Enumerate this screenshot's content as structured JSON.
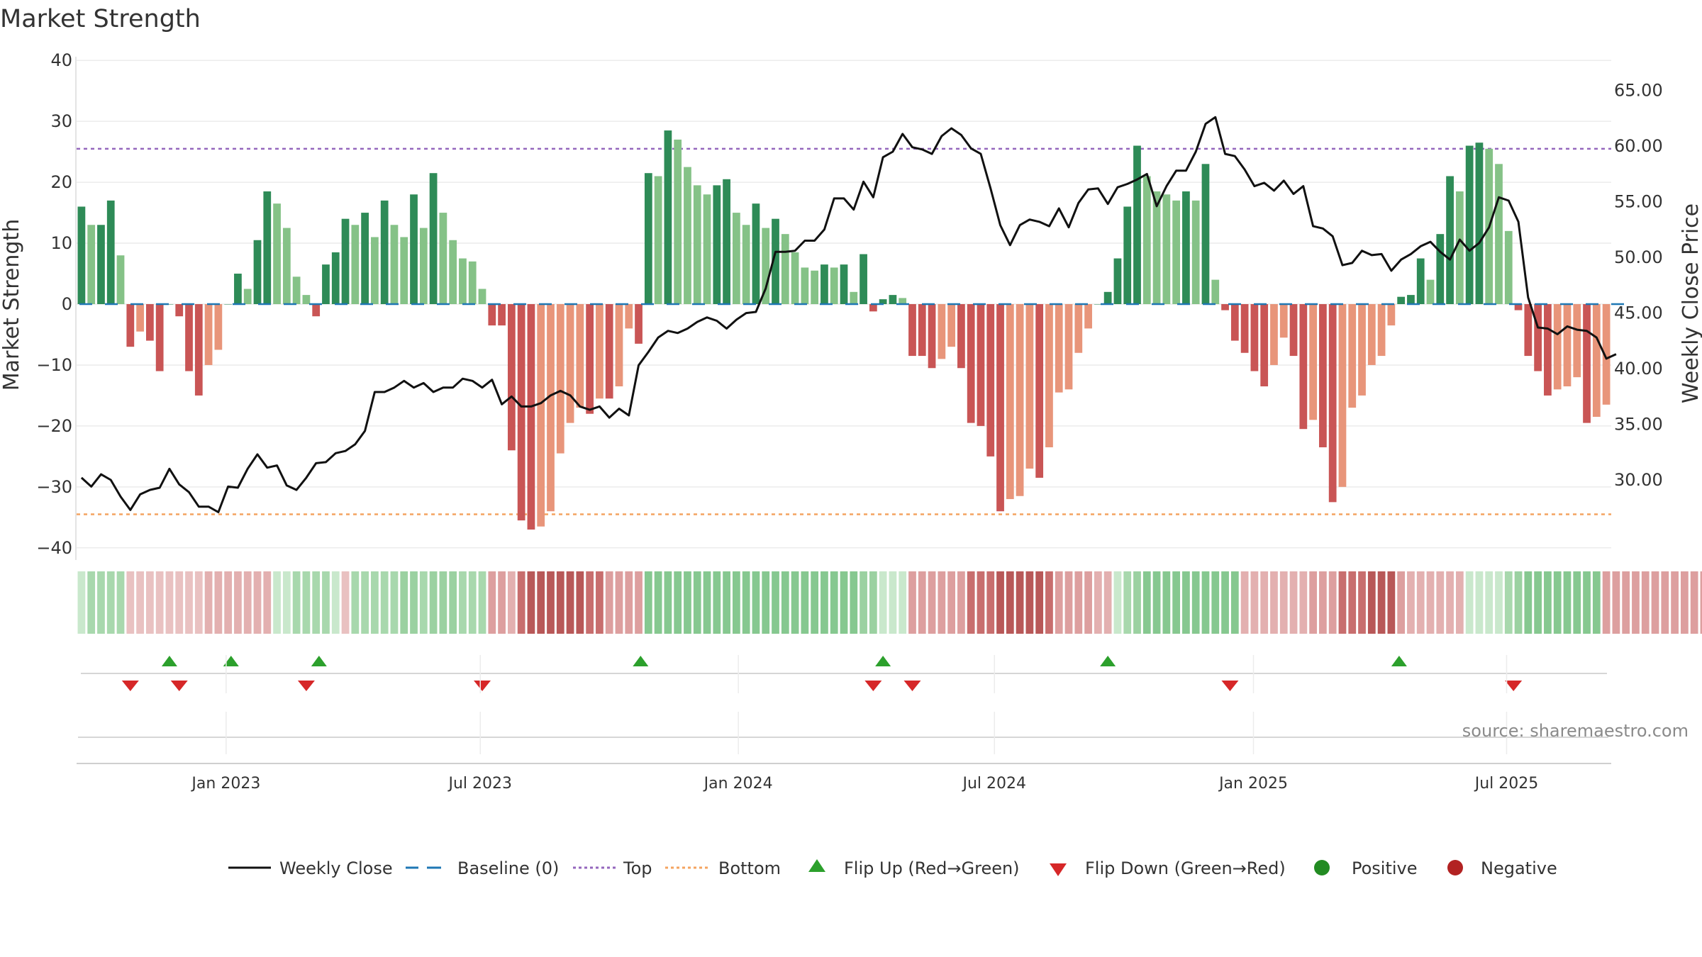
{
  "chart_data": {
    "type": "bar",
    "title": "Market Strength",
    "source": "source: sharemaestro.com",
    "ylabel": "Market Strength",
    "ylabel2": "Weekly Close Price",
    "ylim": [
      -42,
      42
    ],
    "ylim2": [
      22.8,
      68.8
    ],
    "yticks": [
      40,
      30,
      20,
      10,
      0,
      -10,
      -20,
      -30,
      -40
    ],
    "yticks2": [
      "65.00",
      "60.00",
      "55.00",
      "50.00",
      "45.00",
      "40.00",
      "35.00",
      "30.00"
    ],
    "ytick_labels": [
      "40",
      "30",
      "20",
      "10",
      "0",
      "−10",
      "−20",
      "−30",
      "−40"
    ],
    "top": 25.5,
    "bottom": -34.5,
    "xticks": [
      {
        "label": "Jan 2023",
        "week": 14.8
      },
      {
        "label": "Jul 2023",
        "week": 40.8
      },
      {
        "label": "Jan 2024",
        "week": 67.2
      },
      {
        "label": "Jul 2024",
        "week": 93.4
      },
      {
        "label": "Jan 2025",
        "week": 119.9
      },
      {
        "label": "Jul 2025",
        "week": 145.8
      }
    ],
    "strength": [
      16,
      13,
      13,
      17,
      8,
      -7,
      -4.5,
      -6,
      -11,
      0,
      -2,
      -11,
      -15,
      -10,
      -7.5,
      0,
      5,
      2.5,
      10.5,
      18.5,
      16.5,
      12.5,
      4.5,
      1.5,
      -2,
      6.5,
      8.5,
      14,
      13,
      15,
      11,
      17,
      13,
      11,
      18,
      12.5,
      21.5,
      15,
      10.5,
      7.5,
      7,
      2.5,
      -3.5,
      -3.5,
      -24,
      -35.5,
      -37,
      -36.5,
      -34,
      -24.5,
      -19.5,
      -17,
      -18,
      -15.5,
      -15.5,
      -13.5,
      -4,
      -6.5,
      21.5,
      21,
      28.5,
      27,
      22.5,
      19.5,
      18,
      19.5,
      20.5,
      15,
      13,
      16.5,
      12.5,
      14,
      11.5,
      8.5,
      6,
      5.5,
      6.5,
      6,
      6.5,
      2,
      8.2,
      -1.2,
      0.8,
      1.5,
      1,
      -8.5,
      -8.5,
      -10.5,
      -9,
      -7,
      -10.5,
      -19.5,
      -20,
      -25,
      -34,
      -32,
      -31.5,
      -27,
      -28.5,
      -23.5,
      -14.5,
      -14,
      -8,
      -4,
      0,
      2,
      7.5,
      16,
      26,
      21,
      18.5,
      18,
      17,
      18.5,
      17,
      23,
      4,
      -1,
      -6,
      -8,
      -11,
      -13.5,
      -10,
      -5.5,
      -8.5,
      -20.5,
      -19,
      -23.5,
      -32.5,
      -30,
      -17,
      -15,
      -10,
      -8.5,
      -3.5,
      1.2,
      1.5,
      7.5,
      4,
      11.5,
      21,
      18.5,
      26,
      26.5,
      25.5,
      23,
      12,
      -1,
      -8.5,
      -11,
      -15,
      -14,
      -13.5,
      -12,
      -19.5,
      -18.5,
      -16.5
    ],
    "price": [
      30.2,
      29.4,
      30.5,
      30.0,
      28.5,
      27.3,
      28.7,
      29.1,
      29.3,
      31.0,
      29.6,
      28.9,
      27.6,
      27.6,
      27.1,
      29.4,
      29.3,
      31.0,
      32.3,
      31.1,
      31.3,
      29.5,
      29.1,
      30.2,
      31.5,
      31.6,
      32.4,
      32.6,
      33.2,
      34.4,
      37.9,
      37.9,
      38.3,
      38.9,
      38.3,
      38.7,
      37.9,
      38.3,
      38.3,
      39.1,
      38.9,
      38.3,
      39.0,
      36.8,
      37.5,
      36.6,
      36.6,
      36.9,
      37.6,
      38.0,
      37.6,
      36.6,
      36.3,
      36.6,
      35.6,
      36.4,
      35.8,
      40.3,
      41.5,
      42.8,
      43.4,
      43.2,
      43.6,
      44.2,
      44.6,
      44.3,
      43.6,
      44.4,
      45.0,
      45.1,
      47.2,
      50.5,
      50.5,
      50.6,
      51.5,
      51.5,
      52.5,
      55.3,
      55.3,
      54.3,
      56.8,
      55.4,
      59.0,
      59.5,
      61.1,
      59.9,
      59.7,
      59.3,
      60.9,
      61.6,
      61.0,
      59.8,
      59.3,
      56.2,
      52.9,
      51.1,
      52.9,
      53.4,
      53.2,
      52.8,
      54.4,
      52.7,
      54.9,
      56.1,
      56.2,
      54.8,
      56.3,
      56.6,
      57.0,
      57.5,
      54.6,
      56.4,
      57.8,
      57.8,
      59.5,
      62.0,
      62.6,
      59.3,
      59.1,
      57.9,
      56.4,
      56.7,
      56.0,
      56.9,
      55.7,
      56.4,
      52.8,
      52.6,
      51.9,
      49.3,
      49.5,
      50.6,
      50.2,
      50.3,
      48.8,
      49.8,
      50.3,
      51.0,
      51.4,
      50.5,
      49.8,
      51.6,
      50.6,
      51.3,
      52.7,
      55.4,
      55.1,
      53.2,
      46.4,
      43.7,
      43.6,
      43.1,
      43.8,
      43.5,
      43.4,
      42.8,
      40.9,
      41.3
    ],
    "regime_colors": {
      "darkgreen": "#2e8b57",
      "lightgreen": "#85c287",
      "darkred": "#c95555",
      "lightred": "#e8957a"
    },
    "strip_colors": [
      "#86c890",
      "#9bd1a1",
      "#a8d8ad",
      "#c9e8cc",
      "#e9c1c1",
      "#e3b0b0",
      "#dd9f9f",
      "#c86e6e",
      "#b85858"
    ],
    "strip_levels": [
      3,
      2,
      2,
      2,
      2,
      4,
      4,
      4,
      4,
      4,
      4,
      4,
      4,
      5,
      5,
      5,
      5,
      5,
      5,
      5,
      3,
      3,
      2,
      2,
      2,
      2,
      3,
      4,
      2,
      2,
      2,
      2,
      2,
      1,
      1,
      2,
      1,
      1,
      1,
      2,
      2,
      2,
      6,
      6,
      5,
      7,
      8,
      8,
      8,
      8,
      8,
      8,
      7,
      7,
      6,
      6,
      6,
      6,
      0,
      0,
      0,
      0,
      0,
      0,
      0,
      0,
      0,
      0,
      0,
      0,
      0,
      0,
      0,
      0,
      0,
      0,
      0,
      0,
      0,
      0,
      1,
      1,
      3,
      3,
      3,
      6,
      6,
      6,
      6,
      6,
      6,
      7,
      7,
      7,
      8,
      8,
      8,
      8,
      8,
      7,
      6,
      6,
      6,
      6,
      5,
      5,
      3,
      2,
      1,
      0,
      0,
      0,
      0,
      0,
      0,
      0,
      0,
      0,
      0,
      5,
      5,
      5,
      5,
      5,
      5,
      5,
      6,
      6,
      6,
      7,
      7,
      7,
      8,
      8,
      8,
      6,
      5,
      5,
      5,
      5,
      5,
      5,
      3,
      3,
      3,
      3,
      2,
      1,
      0,
      0,
      0,
      0,
      0,
      0,
      0,
      0,
      6,
      6,
      6,
      6,
      6,
      6,
      6,
      6,
      6,
      6,
      6,
      6
    ],
    "flip_up_weeks": [
      9,
      15.3,
      24.3,
      57.2,
      82,
      105,
      134.8
    ],
    "flip_down_weeks": [
      5,
      10,
      23,
      41,
      81,
      85,
      117.5,
      146.5
    ],
    "legend": [
      {
        "label": "Weekly Close",
        "icon": "line-icon",
        "color": "#111111"
      },
      {
        "label": "Baseline (0)",
        "icon": "dash-icon",
        "color": "#1f77b4"
      },
      {
        "label": "Top",
        "icon": "dot-line-icon",
        "color": "#9467bd"
      },
      {
        "label": "Bottom",
        "icon": "dot-line-icon",
        "color": "#f4a460"
      },
      {
        "label": "Flip Up (Red→Green)",
        "icon": "triangle-up-icon",
        "color": "#2ca02c"
      },
      {
        "label": "Flip Down (Green→Red)",
        "icon": "triangle-down-icon",
        "color": "#d62728"
      },
      {
        "label": "Positive",
        "icon": "circle-icon",
        "color": "#228b22"
      },
      {
        "label": "Negative",
        "icon": "circle-icon",
        "color": "#b22222"
      }
    ]
  }
}
